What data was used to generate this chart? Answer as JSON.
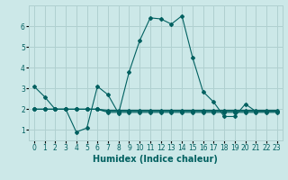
{
  "xlabel": "Humidex (Indice chaleur)",
  "background_color": "#cce8e8",
  "grid_color": "#b0d0d0",
  "line_color": "#006060",
  "xlim": [
    -0.5,
    23.5
  ],
  "ylim": [
    0.5,
    7.0
  ],
  "yticks": [
    1,
    2,
    3,
    4,
    5,
    6
  ],
  "xticks": [
    0,
    1,
    2,
    3,
    4,
    5,
    6,
    7,
    8,
    9,
    10,
    11,
    12,
    13,
    14,
    15,
    16,
    17,
    18,
    19,
    20,
    21,
    22,
    23
  ],
  "series": [
    {
      "x": [
        0,
        1,
        2,
        3,
        4,
        5,
        6,
        7,
        8,
        9,
        10,
        11,
        12,
        13,
        14,
        15,
        16,
        17,
        18,
        19,
        20,
        21,
        22,
        23
      ],
      "y": [
        3.1,
        2.6,
        2.0,
        2.0,
        0.9,
        1.1,
        3.1,
        2.7,
        1.8,
        3.8,
        5.3,
        6.4,
        6.35,
        6.1,
        6.5,
        4.5,
        2.85,
        2.35,
        1.65,
        1.65,
        2.25,
        1.9,
        1.9,
        1.9
      ]
    },
    {
      "x": [
        0,
        1,
        2,
        3,
        4,
        5,
        6,
        7,
        8,
        9,
        10,
        11,
        12,
        13,
        14,
        15,
        16,
        17,
        18,
        19,
        20,
        21,
        22,
        23
      ],
      "y": [
        2.0,
        2.0,
        2.0,
        2.0,
        2.0,
        2.0,
        2.0,
        1.85,
        1.85,
        1.85,
        1.85,
        1.85,
        1.85,
        1.85,
        1.85,
        1.85,
        1.85,
        1.85,
        1.85,
        1.85,
        1.85,
        1.85,
        1.85,
        1.85
      ]
    },
    {
      "x": [
        0,
        1,
        2,
        3,
        4,
        5,
        6,
        7,
        8,
        9,
        10,
        11,
        12,
        13,
        14,
        15,
        16,
        17,
        18,
        19,
        20,
        21,
        22,
        23
      ],
      "y": [
        2.0,
        2.0,
        2.0,
        2.0,
        2.0,
        2.0,
        2.0,
        1.9,
        1.9,
        1.9,
        1.9,
        1.9,
        1.9,
        1.9,
        1.9,
        1.9,
        1.9,
        1.9,
        1.9,
        1.9,
        1.9,
        1.9,
        1.9,
        1.9
      ]
    },
    {
      "x": [
        0,
        1,
        2,
        3,
        4,
        5,
        6,
        7,
        8,
        9,
        10,
        11,
        12,
        13,
        14,
        15,
        16,
        17,
        18,
        19,
        20,
        21,
        22,
        23
      ],
      "y": [
        2.0,
        2.0,
        2.0,
        2.0,
        2.0,
        2.0,
        2.0,
        1.95,
        1.95,
        1.95,
        1.95,
        1.95,
        1.95,
        1.95,
        1.95,
        1.95,
        1.95,
        1.95,
        1.95,
        1.95,
        1.95,
        1.95,
        1.95,
        1.95
      ]
    }
  ],
  "marker": "D",
  "markersize": 2.0,
  "linewidth": 0.8,
  "tick_fontsize": 5.5,
  "label_fontsize": 7.0
}
